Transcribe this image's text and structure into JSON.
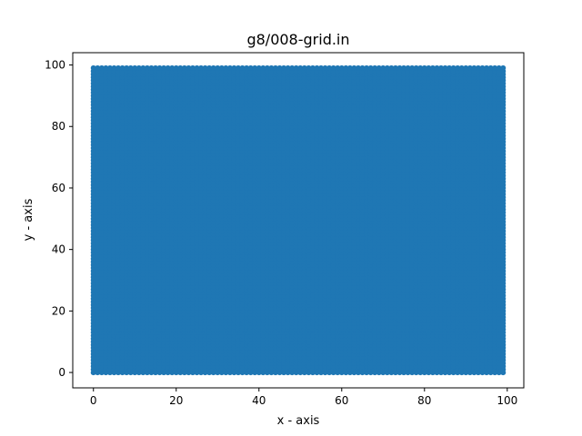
{
  "chart_data": {
    "type": "scatter",
    "title": "g8/008-grid.in",
    "xlabel": "x - axis",
    "ylabel": "y - axis",
    "xlim": [
      -5,
      104
    ],
    "ylim": [
      -5,
      104
    ],
    "x_ticks": [
      0,
      20,
      40,
      60,
      80,
      100
    ],
    "y_ticks": [
      0,
      20,
      40,
      60,
      80,
      100
    ],
    "grid": false,
    "legend": "none",
    "series": [
      {
        "color": "#1f77b4",
        "grid_points": {
          "x_start": 0,
          "x_end": 99,
          "x_step": 1,
          "y_start": 0,
          "y_end": 99,
          "y_step": 1
        }
      }
    ]
  }
}
